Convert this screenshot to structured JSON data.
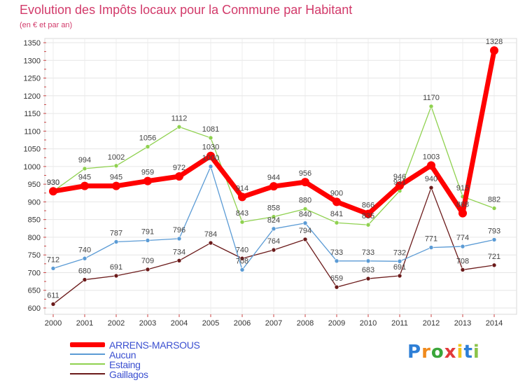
{
  "header": {
    "title": "Evolution des Impôts locaux pour la Commune par Habitant",
    "subtitle": "(en € et par an)"
  },
  "logo": {
    "text": "Proxiti",
    "colors": [
      "#2e7fd6",
      "#f08a1c",
      "#3aa63a",
      "#e23a3a",
      "#f0c51c",
      "#2e7fd6",
      "#8bc34a"
    ]
  },
  "chart_data": {
    "type": "line",
    "title": "Evolution des Impôts locaux pour la Commune par Habitant",
    "ylabel": "(en € et par an)",
    "xlabel": "",
    "x": [
      "2000",
      "2001",
      "2002",
      "2003",
      "2004",
      "2005",
      "2006",
      "2007",
      "2008",
      "2009",
      "2010",
      "2011",
      "2012",
      "2013",
      "2014"
    ],
    "ylim": [
      600,
      1350
    ],
    "yticks": [
      600,
      650,
      700,
      750,
      800,
      850,
      900,
      950,
      1000,
      1050,
      1100,
      1150,
      1200,
      1250,
      1300,
      1350
    ],
    "grid": true,
    "legend_position": "bottom-left",
    "series": [
      {
        "name": "ARRENS-MARSOUS",
        "color": "#ff0000",
        "values": [
          930,
          945,
          945,
          959,
          972,
          1030,
          914,
          944,
          956,
          900,
          866,
          946,
          1003,
          868,
          1328
        ],
        "labels": [
          "930",
          "945",
          "945",
          "959",
          "972",
          "1030",
          "914",
          "944",
          "956",
          "900",
          "866",
          "946",
          "1003",
          "868",
          "1328"
        ]
      },
      {
        "name": "Aucun",
        "color": "#5b9bd5",
        "values": [
          712,
          740,
          787,
          791,
          796,
          1000,
          708,
          824,
          840,
          733,
          733,
          732,
          771,
          774,
          793
        ],
        "labels": [
          "712",
          "740",
          "787",
          "791",
          "796",
          "1000",
          "708",
          "824",
          "840",
          "733",
          "733",
          "732",
          "771",
          "774",
          "793"
        ]
      },
      {
        "name": "Estaing",
        "color": "#8fd14f",
        "values": [
          930,
          994,
          1002,
          1056,
          1112,
          1081,
          843,
          858,
          880,
          841,
          835,
          931,
          1170,
          915,
          882
        ],
        "labels": [
          "930",
          "994",
          "1002",
          "1056",
          "1112",
          "1081",
          "843",
          "858",
          "880",
          "841",
          "835",
          "931",
          "1170",
          "915",
          "882"
        ]
      },
      {
        "name": "Gaillagos",
        "color": "#6b1a1a",
        "values": [
          611,
          680,
          691,
          709,
          734,
          784,
          740,
          764,
          794,
          659,
          683,
          691,
          940,
          708,
          721
        ],
        "labels": [
          "611",
          "680",
          "691",
          "709",
          "734",
          "784",
          "740",
          "764",
          "794",
          "659",
          "683",
          "691",
          "940",
          "708",
          "721"
        ]
      }
    ]
  }
}
